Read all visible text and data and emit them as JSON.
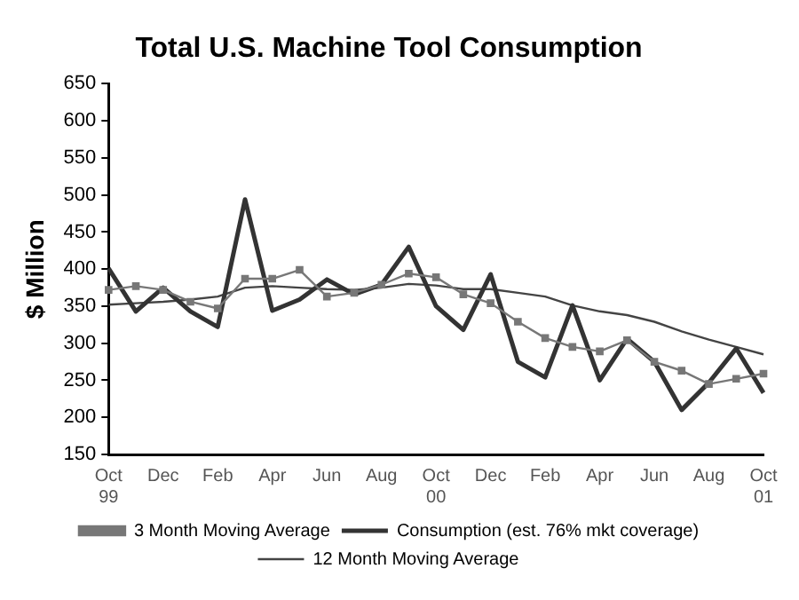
{
  "chart_data": {
    "type": "line",
    "title": "Total U.S. Machine Tool Consumption",
    "ylabel": "$ Million",
    "categories": [
      "Oct 99",
      null,
      "Dec",
      null,
      "Feb",
      null,
      "Apr",
      null,
      "Jun",
      null,
      "Aug",
      null,
      "Oct 00",
      null,
      "Dec",
      null,
      "Feb",
      null,
      "Apr",
      null,
      "Jun",
      null,
      "Aug",
      null,
      "Oct 01"
    ],
    "series": [
      {
        "name": "Consumption (est. 76% mkt coverage)",
        "color": "#333333",
        "marker": "none",
        "values": [
          401,
          343,
          375,
          343,
          322,
          494,
          344,
          359,
          386,
          366,
          379,
          430,
          350,
          318,
          393,
          275,
          254,
          351,
          250,
          306,
          275,
          210,
          247,
          293,
          233
        ]
      },
      {
        "name": "12 Month Moving Average",
        "color": "#444444",
        "marker": "none",
        "values": [
          352,
          354,
          356,
          359,
          363,
          375,
          377,
          375,
          373,
          372,
          375,
          380,
          378,
          373,
          373,
          368,
          363,
          351,
          343,
          338,
          329,
          316,
          305,
          295,
          285
        ]
      },
      {
        "name": "3 Month Moving Average",
        "color": "#777777",
        "marker": "square",
        "values": [
          372,
          377,
          372,
          356,
          347,
          387,
          387,
          399,
          363,
          368,
          379,
          394,
          389,
          366,
          354,
          329,
          307,
          295,
          289,
          304,
          275,
          263,
          245,
          252,
          259
        ]
      }
    ],
    "ylim": [
      150,
      650
    ],
    "yticks": [
      150,
      200,
      250,
      300,
      350,
      400,
      450,
      500,
      550,
      600,
      650
    ],
    "grid": false,
    "legend": "bottom",
    "line_style": "solid"
  }
}
